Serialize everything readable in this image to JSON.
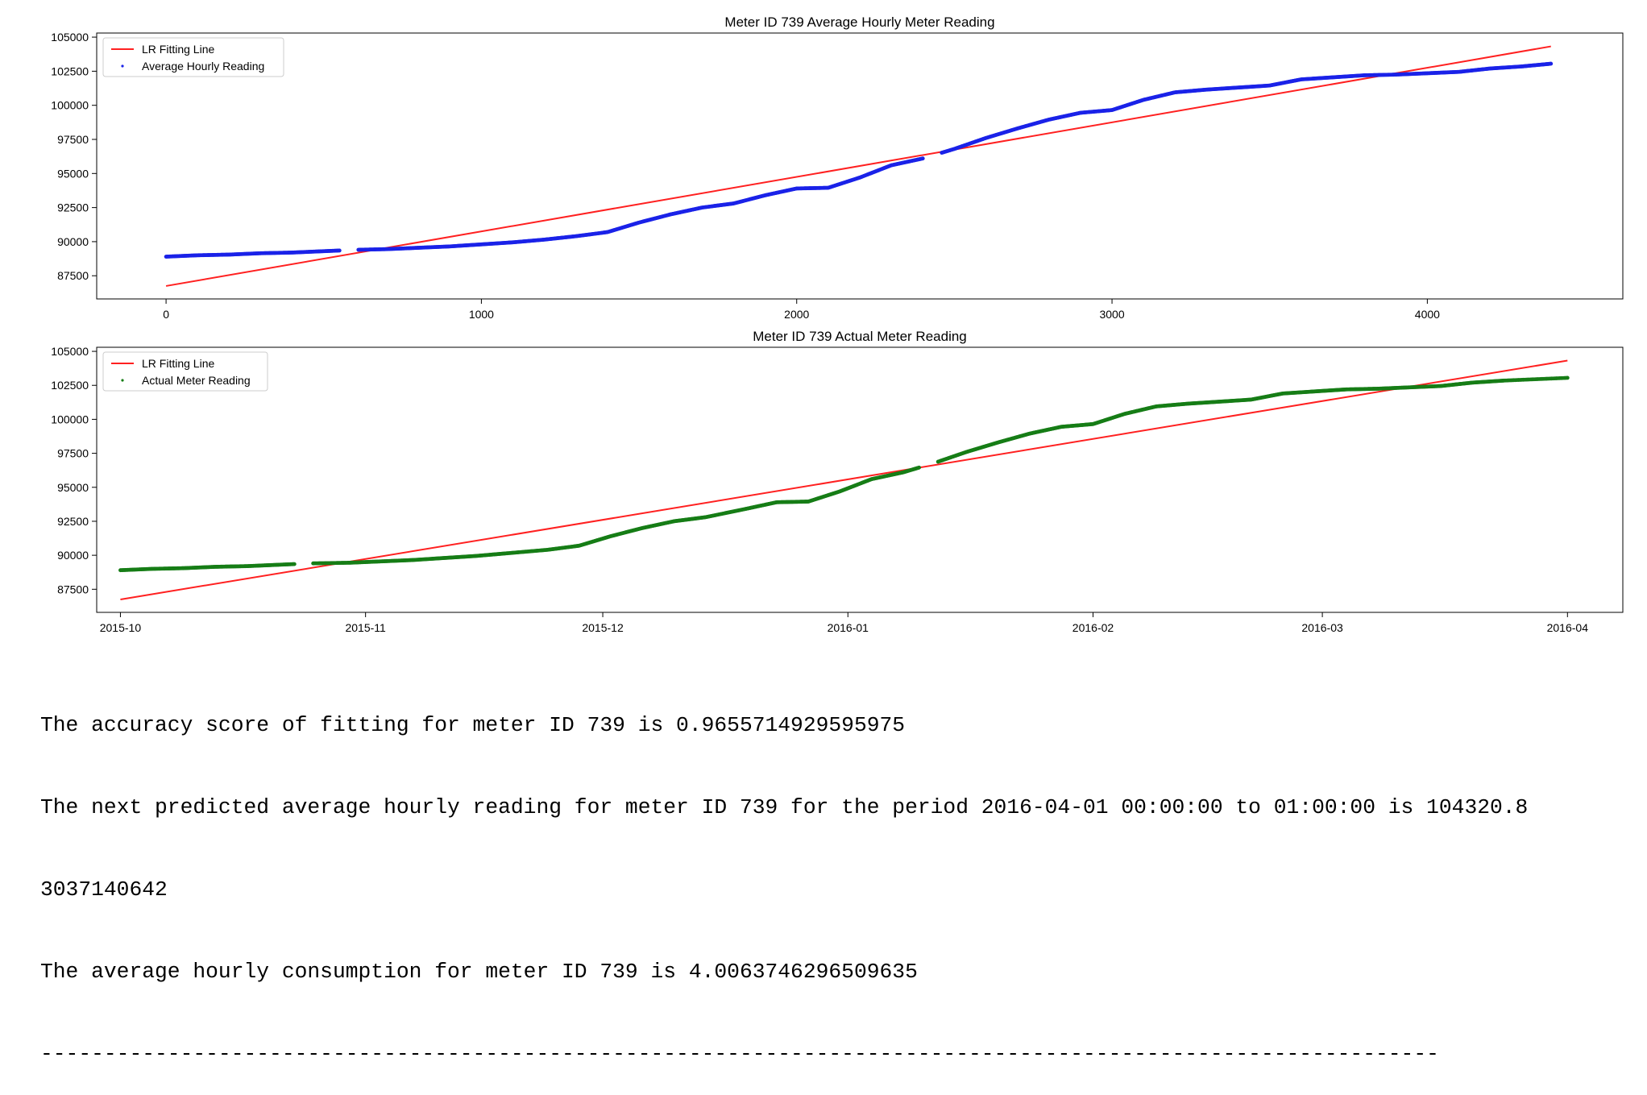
{
  "colors": {
    "fit_line": "#ff2020",
    "series_avg": "#1a22e8",
    "series_actual": "#167d16"
  },
  "chart_data": [
    {
      "type": "scatter",
      "title": "Meter ID 739 Average Hourly Meter Reading",
      "xlabel": "",
      "ylabel": "",
      "xlim": [
        -220,
        4620
      ],
      "ylim": [
        85800,
        105300
      ],
      "xticks": [
        "0",
        "1000",
        "2000",
        "3000",
        "4000"
      ],
      "yticks": [
        "87500",
        "90000",
        "92500",
        "95000",
        "97500",
        "100000",
        "102500",
        "105000"
      ],
      "legend_position": "top-left",
      "series": [
        {
          "name": "LR Fitting Line",
          "kind": "line",
          "color": "#ff2020",
          "x": [
            0,
            4392
          ],
          "y": [
            86750,
            104320.8
          ]
        },
        {
          "name": "Average Hourly Reading",
          "kind": "scatter",
          "color": "#1a22e8",
          "x": [
            0,
            100,
            200,
            300,
            400,
            500,
            600,
            700,
            800,
            900,
            1000,
            1100,
            1200,
            1300,
            1400,
            1500,
            1600,
            1700,
            1800,
            1900,
            2000,
            2100,
            2200,
            2300,
            2400,
            2500,
            2600,
            2700,
            2800,
            2900,
            3000,
            3100,
            3200,
            3300,
            3400,
            3500,
            3600,
            3700,
            3800,
            3900,
            4000,
            4100,
            4200,
            4300,
            4392
          ],
          "y": [
            88900,
            89000,
            89050,
            89150,
            89200,
            89300,
            89400,
            89450,
            89550,
            89650,
            89800,
            89950,
            90150,
            90400,
            90700,
            91400,
            92000,
            92500,
            92800,
            93400,
            93900,
            93950,
            94700,
            95600,
            96100,
            96800,
            97600,
            98300,
            98950,
            99450,
            99650,
            100400,
            100950,
            101150,
            101300,
            101450,
            101900,
            102050,
            102200,
            102250,
            102350,
            102450,
            102700,
            102850,
            103050
          ],
          "gaps_after_x": [
            550,
            2400
          ]
        }
      ]
    },
    {
      "type": "scatter",
      "title": "Meter ID 739 Actual Meter Reading",
      "xlabel": "",
      "ylabel": "",
      "xlim": [
        "2015-09-28",
        "2016-04-08"
      ],
      "ylim": [
        85800,
        105300
      ],
      "xticks": [
        "2015-10",
        "2015-11",
        "2015-12",
        "2016-01",
        "2016-02",
        "2016-03",
        "2016-04"
      ],
      "yticks": [
        "87500",
        "90000",
        "92500",
        "95000",
        "97500",
        "100000",
        "102500",
        "105000"
      ],
      "legend_position": "top-left",
      "series": [
        {
          "name": "LR Fitting Line",
          "kind": "line",
          "color": "#ff2020",
          "x": [
            "2015-10-01",
            "2016-04-01"
          ],
          "y": [
            86750,
            104320.8
          ]
        },
        {
          "name": "Actual Meter Reading",
          "kind": "scatter",
          "color": "#167d16",
          "x": [
            "2015-10-01",
            "2015-10-05",
            "2015-10-09",
            "2015-10-13",
            "2015-10-17",
            "2015-10-21",
            "2015-10-25",
            "2015-10-30",
            "2015-11-03",
            "2015-11-07",
            "2015-11-11",
            "2015-11-15",
            "2015-11-19",
            "2015-11-24",
            "2015-11-28",
            "2015-12-02",
            "2015-12-06",
            "2015-12-10",
            "2015-12-14",
            "2015-12-19",
            "2015-12-23",
            "2015-12-27",
            "2015-12-31",
            "2016-01-04",
            "2016-01-08",
            "2016-01-12",
            "2016-01-16",
            "2016-01-20",
            "2016-01-24",
            "2016-01-28",
            "2016-02-01",
            "2016-02-05",
            "2016-02-09",
            "2016-02-13",
            "2016-02-17",
            "2016-02-21",
            "2016-02-25",
            "2016-02-29",
            "2016-03-04",
            "2016-03-08",
            "2016-03-12",
            "2016-03-16",
            "2016-03-20",
            "2016-03-24",
            "2016-04-01"
          ],
          "y": [
            88900,
            89000,
            89050,
            89150,
            89200,
            89300,
            89400,
            89450,
            89550,
            89650,
            89800,
            89950,
            90150,
            90400,
            90700,
            91400,
            92000,
            92500,
            92800,
            93400,
            93900,
            93950,
            94700,
            95600,
            96100,
            96800,
            97600,
            98300,
            98950,
            99450,
            99650,
            100400,
            100950,
            101150,
            101300,
            101450,
            101900,
            102050,
            102200,
            102250,
            102350,
            102450,
            102700,
            102850,
            103050
          ],
          "gaps_after_x": [
            "2015-10-23",
            "2016-01-10"
          ]
        }
      ]
    }
  ],
  "output": {
    "line1": "The accuracy score of fitting for meter ID 739 is 0.9655714929595975",
    "line2": "The next predicted average hourly reading for meter ID 739 for the period 2016-04-01 00:00:00 to 01:00:00 is 104320.8",
    "line3": "3037140642",
    "line4": "The average hourly consumption for meter ID 739 is 4.0063746296509635",
    "line5": "--------------------------------------------------------------------------------------------------------------"
  }
}
